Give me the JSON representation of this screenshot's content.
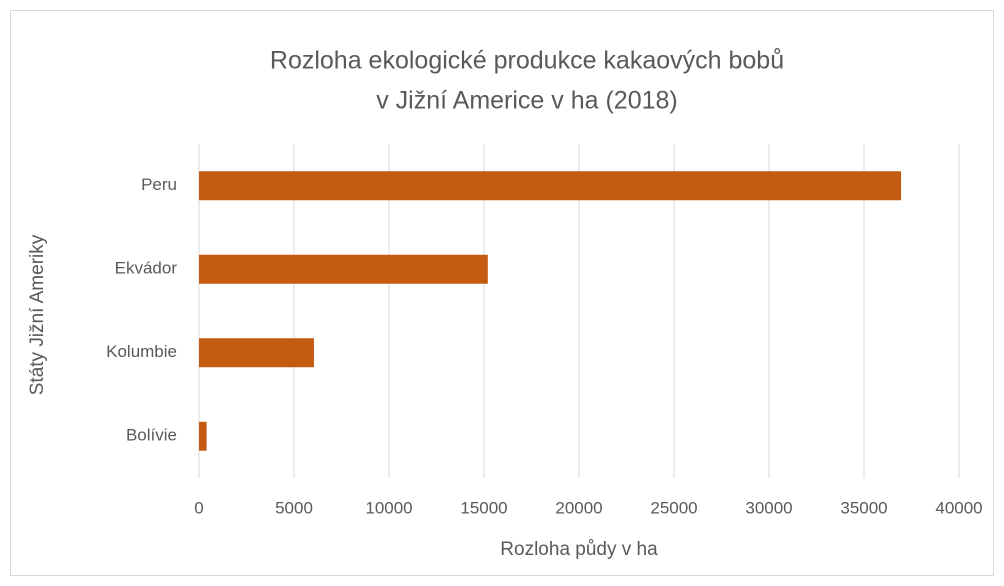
{
  "chart_data": {
    "type": "bar",
    "orientation": "horizontal",
    "title": [
      "Rozloha ekologické produkce kakaových bobů",
      "v Jižní Americe v ha (2018)"
    ],
    "x_label": "Rozloha půdy v ha",
    "y_label": "Státy Jižní Ameriky",
    "categories": [
      "Peru",
      "Ekvádor",
      "Kolumbie",
      "Bolívie"
    ],
    "values": [
      36950,
      15200,
      6050,
      400
    ],
    "color": "#c55a11",
    "xlim": [
      0,
      40000
    ],
    "xticks": [
      0,
      5000,
      10000,
      15000,
      20000,
      25000,
      30000,
      35000,
      40000
    ],
    "grid": true
  }
}
